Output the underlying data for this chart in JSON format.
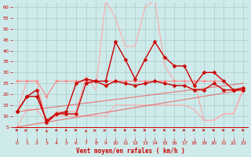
{
  "bg_color": "#ceeaea",
  "grid_color": "#aacccc",
  "xlabel": "Vent moyen/en rafales ( km/h )",
  "xlim": [
    -0.5,
    23.5
  ],
  "ylim": [
    0,
    62
  ],
  "yticks": [
    5,
    10,
    15,
    20,
    25,
    30,
    35,
    40,
    45,
    50,
    55,
    60
  ],
  "xticks": [
    0,
    1,
    2,
    3,
    4,
    5,
    6,
    7,
    8,
    9,
    10,
    11,
    12,
    13,
    14,
    15,
    16,
    17,
    18,
    19,
    20,
    21,
    22,
    23
  ],
  "series": [
    {
      "name": "envelope_top_light",
      "color": "#ffaaaa",
      "alpha": 1.0,
      "linewidth": 0.8,
      "marker": null,
      "x": [
        0,
        1,
        2,
        3,
        4,
        5,
        6,
        7,
        8,
        9,
        10,
        11,
        12,
        13,
        14,
        15,
        16,
        17,
        18,
        19,
        20,
        21,
        22,
        23
      ],
      "y": [
        12,
        26,
        26,
        7,
        12,
        12,
        12,
        28,
        22,
        63,
        55,
        42,
        42,
        60,
        63,
        33,
        26,
        26,
        26,
        8,
        8,
        11,
        11,
        23
      ]
    },
    {
      "name": "envelope_bot_light",
      "color": "#ffaaaa",
      "alpha": 1.0,
      "linewidth": 0.8,
      "marker": null,
      "x": [
        0,
        1,
        2,
        3,
        4,
        5,
        6,
        7,
        8,
        9,
        10,
        11,
        12,
        13,
        14,
        15,
        16,
        17,
        18,
        19,
        20,
        21,
        22,
        23
      ],
      "y": [
        5,
        13,
        13,
        7,
        10,
        10,
        10,
        10,
        10,
        10,
        15,
        15,
        15,
        15,
        15,
        15,
        15,
        15,
        13,
        8,
        8,
        11,
        11,
        22
      ]
    },
    {
      "name": "trend_line_1",
      "color": "#ff8888",
      "alpha": 0.9,
      "linewidth": 0.9,
      "marker": "D",
      "markersize": 2,
      "x": [
        0,
        1,
        2,
        3,
        4,
        5,
        6,
        7,
        8,
        9,
        10,
        11,
        12,
        13,
        14,
        15,
        16,
        17,
        18,
        19,
        20,
        21,
        22,
        23
      ],
      "y": [
        26,
        26,
        26,
        19,
        26,
        26,
        26,
        26,
        26,
        26,
        26,
        26,
        26,
        26,
        26,
        26,
        26,
        26,
        26,
        26,
        26,
        26,
        22,
        22
      ]
    },
    {
      "name": "trend_line_2",
      "color": "#ee5555",
      "alpha": 0.7,
      "linewidth": 0.9,
      "marker": null,
      "x": [
        0,
        23
      ],
      "y": [
        12,
        25
      ]
    },
    {
      "name": "trend_line_3",
      "color": "#ee5555",
      "alpha": 0.7,
      "linewidth": 0.9,
      "marker": null,
      "x": [
        0,
        23
      ],
      "y": [
        5,
        22
      ]
    },
    {
      "name": "rafales_dark",
      "color": "#cc0000",
      "alpha": 1.0,
      "linewidth": 1.0,
      "marker": "D",
      "markersize": 2.5,
      "x": [
        0,
        1,
        2,
        3,
        4,
        5,
        6,
        7,
        8,
        9,
        10,
        11,
        12,
        13,
        14,
        15,
        16,
        17,
        18,
        19,
        20,
        21,
        22,
        23
      ],
      "y": [
        12,
        19,
        19,
        8,
        11,
        12,
        25,
        27,
        26,
        26,
        44,
        36,
        27,
        36,
        44,
        37,
        33,
        33,
        24,
        30,
        30,
        26,
        22,
        23
      ]
    },
    {
      "name": "vent_moyen_dark",
      "color": "#cc0000",
      "alpha": 1.0,
      "linewidth": 1.0,
      "marker": "D",
      "markersize": 2.5,
      "x": [
        0,
        1,
        2,
        3,
        4,
        5,
        6,
        7,
        8,
        9,
        10,
        11,
        12,
        13,
        14,
        15,
        16,
        17,
        18,
        19,
        20,
        21,
        22,
        23
      ],
      "y": [
        12,
        19,
        22,
        7,
        11,
        11,
        11,
        25,
        26,
        24,
        26,
        25,
        24,
        25,
        26,
        25,
        24,
        24,
        22,
        22,
        25,
        22,
        22,
        22
      ]
    }
  ],
  "arrow_color": "#cc0000",
  "wind_dirs_angles": [
    90,
    45,
    30,
    0,
    210,
    210,
    90,
    0,
    45,
    45,
    90,
    90,
    90,
    90,
    90,
    90,
    90,
    90,
    90,
    90,
    90,
    90,
    90,
    90
  ]
}
